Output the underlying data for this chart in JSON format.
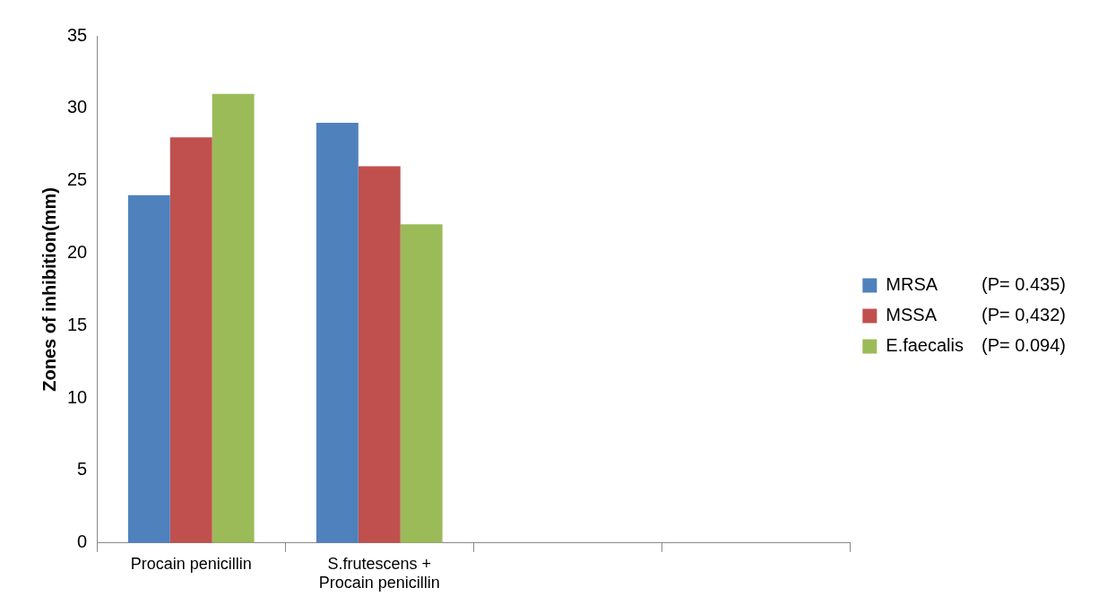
{
  "chart_data": {
    "type": "bar",
    "ylabel": "Zones of inhibition(mm)",
    "categories": [
      "Procain penicillin",
      "S.frutescens + Procain penicillin",
      null,
      null
    ],
    "series": [
      {
        "name": "MRSA",
        "color": "#4f81bd",
        "values": [
          24,
          29,
          null,
          null
        ]
      },
      {
        "name": "MSSA",
        "color": "#c0504d",
        "values": [
          28,
          26,
          null,
          null
        ]
      },
      {
        "name": "E.faecalis",
        "color": "#9bbb59",
        "values": [
          31,
          22,
          null,
          null
        ]
      }
    ],
    "ylim": [
      0,
      35
    ],
    "yticks": [
      0,
      5,
      10,
      15,
      20,
      25,
      30,
      35
    ],
    "grid": false,
    "legend": "right",
    "annotations": [
      "(P= 0.435)",
      "(P= 0,432)",
      "(P= 0.094)"
    ]
  }
}
